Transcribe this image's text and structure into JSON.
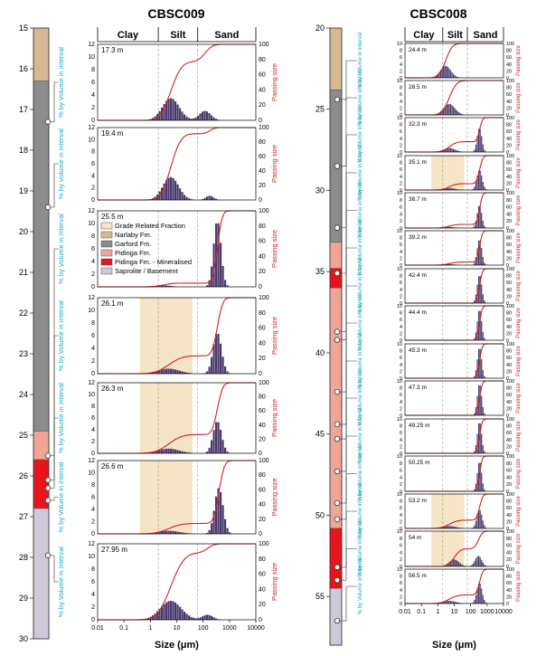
{
  "colors": {
    "narlaby": "#d7b893",
    "garford": "#8c8c8c",
    "pidinga": "#f2a497",
    "pidinga_min": "#e8141c",
    "saprolite": "#cfc8da",
    "grade_fraction": "#f5e4c6",
    "histogram": "#4b3a6b",
    "cumulative": "#d42020",
    "axis_left_label": "#1aa7c8",
    "axis_right_label": "#d42020"
  },
  "labels": {
    "ylabel_left": "% by Volume in interval",
    "ylabel_right": "Passing size",
    "xlabel": "Size (μm)",
    "size_classes": [
      "Clay",
      "Silt",
      "Sand"
    ]
  },
  "legend": [
    {
      "label": "Grade Related Fraction",
      "key": "grade_fraction"
    },
    {
      "label": "Narlaby Fm.",
      "key": "narlaby"
    },
    {
      "label": "Garford Fm.",
      "key": "garford"
    },
    {
      "label": "Pidinga Fm.",
      "key": "pidinga"
    },
    {
      "label": "Pidinga Fm. - Mineralised",
      "key": "pidinga_min"
    },
    {
      "label": "Saprolite / Basement",
      "key": "saprolite"
    }
  ],
  "chart_data": [
    {
      "type": "bar",
      "title": "CBSC009",
      "depth_axis": {
        "min": 15,
        "max": 30,
        "ticks": [
          15,
          16,
          17,
          18,
          19,
          20,
          21,
          22,
          23,
          24,
          25,
          26,
          27,
          28,
          29,
          30
        ]
      },
      "strat_column": [
        {
          "from": 15,
          "to": 16.3,
          "unit": "narlaby"
        },
        {
          "from": 16.3,
          "to": 24.9,
          "unit": "garford"
        },
        {
          "from": 24.9,
          "to": 25.6,
          "unit": "pidinga"
        },
        {
          "from": 25.6,
          "to": 26.8,
          "unit": "pidinga_min"
        },
        {
          "from": 26.8,
          "to": 30,
          "unit": "saprolite"
        }
      ],
      "x_ticks": [
        "0.01",
        "0.1",
        "1",
        "10",
        "100",
        "1000",
        "10000"
      ],
      "left_ylim": [
        0,
        12
      ],
      "left_ticks": [
        0,
        2,
        4,
        6,
        8,
        10,
        12
      ],
      "right_ylim": [
        0,
        100
      ],
      "right_ticks": [
        0,
        20,
        40,
        60,
        80,
        100
      ],
      "samples": [
        {
          "depth_label": "17.3 m",
          "depth": 17.3,
          "peaks": [
            [
              6,
              3.5,
              0.32
            ],
            [
              120,
              1.5,
              0.22
            ]
          ],
          "grade": null
        },
        {
          "depth_label": "19.4 m",
          "depth": 19.4,
          "peaks": [
            [
              6,
              3.8,
              0.3
            ],
            [
              180,
              0.7,
              0.15
            ]
          ],
          "grade": null
        },
        {
          "depth_label": "25.5 m",
          "depth": 25.5,
          "peaks": [
            [
              3,
              0.25,
              0.3
            ],
            [
              350,
              10.5,
              0.14
            ]
          ],
          "grade": null
        },
        {
          "depth_label": "26.1 m",
          "depth": 26.1,
          "peaks": [
            [
              5,
              0.8,
              0.4
            ],
            [
              350,
              6.5,
              0.16
            ]
          ],
          "grade": [
            0.4,
            40
          ]
        },
        {
          "depth_label": "26.3 m",
          "depth": 26.3,
          "peaks": [
            [
              5,
              0.8,
              0.4
            ],
            [
              350,
              5.5,
              0.16
            ]
          ],
          "grade": [
            0.4,
            40
          ]
        },
        {
          "depth_label": "26.6 m",
          "depth": 26.6,
          "peaks": [
            [
              5,
              0.5,
              0.4
            ],
            [
              400,
              7.5,
              0.16
            ]
          ],
          "grade": [
            0.4,
            40
          ]
        },
        {
          "depth_label": "27.95 m",
          "depth": 27.95,
          "peaks": [
            [
              6,
              3.0,
              0.4
            ],
            [
              150,
              0.8,
              0.2
            ]
          ],
          "grade": null
        }
      ]
    },
    {
      "type": "bar",
      "title": "CBSC008",
      "depth_axis": {
        "min": 20,
        "max": 58,
        "ticks": [
          20,
          25,
          30,
          35,
          40,
          45,
          50,
          55
        ]
      },
      "strat_column": [
        {
          "from": 20,
          "to": 23.8,
          "unit": "narlaby"
        },
        {
          "from": 23.8,
          "to": 33.2,
          "unit": "garford"
        },
        {
          "from": 33.2,
          "to": 34.8,
          "unit": "pidinga"
        },
        {
          "from": 34.8,
          "to": 36.0,
          "unit": "pidinga_min"
        },
        {
          "from": 36.0,
          "to": 50.8,
          "unit": "pidinga"
        },
        {
          "from": 50.8,
          "to": 54.5,
          "unit": "pidinga_min"
        },
        {
          "from": 54.5,
          "to": 58,
          "unit": "saprolite"
        }
      ],
      "x_ticks": [
        "0.01",
        "0.1",
        "1",
        "10",
        "100",
        "1000",
        "10000"
      ],
      "left_ylim": [
        0,
        10
      ],
      "left_ticks": [
        0,
        2,
        4,
        6,
        8,
        10
      ],
      "right_ylim": [
        0,
        100
      ],
      "right_ticks": [
        0,
        20,
        40,
        60,
        80,
        100
      ],
      "samples": [
        {
          "depth_label": "24.4 m",
          "depth": 24.4,
          "peaks": [
            [
              3,
              3.5,
              0.32
            ]
          ],
          "grade": null
        },
        {
          "depth_label": "28.5 m",
          "depth": 28.5,
          "peaks": [
            [
              5,
              3.2,
              0.35
            ]
          ],
          "grade": null
        },
        {
          "depth_label": "32.3 m",
          "depth": 32.3,
          "peaks": [
            [
              5,
              1.2,
              0.35
            ],
            [
              350,
              7.0,
              0.14
            ]
          ],
          "grade": null
        },
        {
          "depth_label": "35.1 m",
          "depth": 35.1,
          "peaks": [
            [
              5,
              0.6,
              0.35
            ],
            [
              350,
              5.8,
              0.16
            ]
          ],
          "grade": [
            0.4,
            40
          ]
        },
        {
          "depth_label": "38.7 m",
          "depth": 38.7,
          "peaks": [
            [
              5,
              0.3,
              0.35
            ],
            [
              350,
              6.5,
              0.14
            ]
          ],
          "grade": null
        },
        {
          "depth_label": "39.2 m",
          "depth": 39.2,
          "peaks": [
            [
              5,
              0.3,
              0.35
            ],
            [
              350,
              7.5,
              0.14
            ]
          ],
          "grade": null
        },
        {
          "depth_label": "42.4 m",
          "depth": 42.4,
          "peaks": [
            [
              350,
              8.2,
              0.14
            ]
          ],
          "grade": null
        },
        {
          "depth_label": "44.4 m",
          "depth": 44.4,
          "peaks": [
            [
              350,
              9.0,
              0.13
            ]
          ],
          "grade": null
        },
        {
          "depth_label": "45.3 m",
          "depth": 45.3,
          "peaks": [
            [
              350,
              9.0,
              0.13
            ]
          ],
          "grade": null
        },
        {
          "depth_label": "47.3 m",
          "depth": 47.3,
          "peaks": [
            [
              350,
              9.2,
              0.13
            ]
          ],
          "grade": null
        },
        {
          "depth_label": "49.25 m",
          "depth": 49.25,
          "peaks": [
            [
              350,
              9.2,
              0.13
            ]
          ],
          "grade": null
        },
        {
          "depth_label": "50.25 m",
          "depth": 50.25,
          "peaks": [
            [
              350,
              8.5,
              0.13
            ]
          ],
          "grade": null
        },
        {
          "depth_label": "53.2 m",
          "depth": 53.2,
          "peaks": [
            [
              5,
              0.7,
              0.4
            ],
            [
              350,
              5.5,
              0.16
            ]
          ],
          "grade": [
            0.4,
            40
          ]
        },
        {
          "depth_label": "54 m",
          "depth": 54,
          "peaks": [
            [
              10,
              2.0,
              0.3
            ],
            [
              300,
              3.0,
              0.2
            ]
          ],
          "grade": [
            0.4,
            40
          ]
        },
        {
          "depth_label": "56.5 m",
          "depth": 56.5,
          "peaks": [
            [
              5,
              0.8,
              0.4
            ],
            [
              350,
              6.0,
              0.16
            ]
          ],
          "grade": null
        }
      ]
    }
  ]
}
